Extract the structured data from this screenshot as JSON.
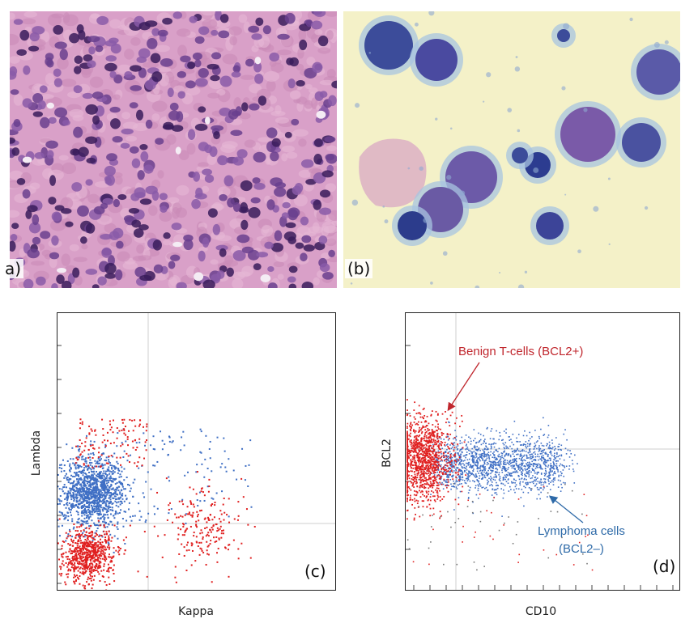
{
  "panels": {
    "a": {
      "label": "a)",
      "image": "h-and-e-stain-lymphoma-tissue-photo"
    },
    "b": {
      "label": "(b)",
      "image": "cytology-smear-lymphoma-cells-photo"
    },
    "c": {
      "tag": "(c)",
      "xlabel": "Kappa",
      "ylabel": "Lambda"
    },
    "d": {
      "tag": "(d)",
      "xlabel": "CD10",
      "ylabel": "BCL2",
      "annotation_benign": "Benign T-cells (BCL2+)",
      "annotation_lymphoma_line1": "Lymphoma cells",
      "annotation_lymphoma_line2": "(BCL2–)"
    }
  },
  "colors": {
    "red_population": "#e02020",
    "blue_population": "#3f6fc4",
    "benign_text": "#c0262d",
    "lymphoma_text": "#2e6aa8"
  }
}
